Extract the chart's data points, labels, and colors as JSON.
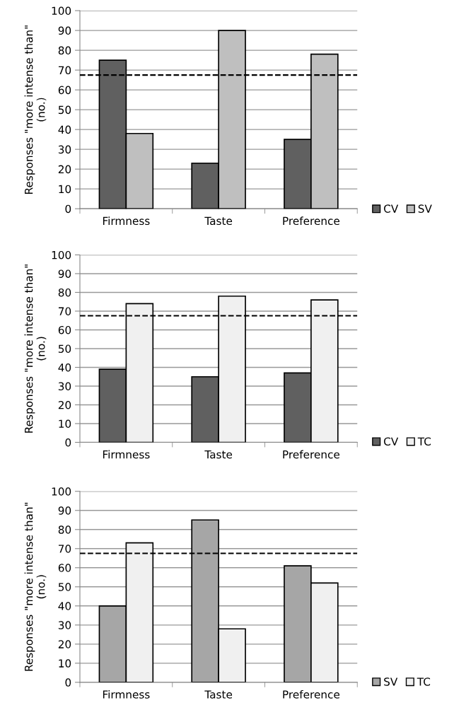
{
  "chart_data": [
    {
      "type": "bar",
      "categories": [
        "Firmness",
        "Taste",
        "Preference"
      ],
      "ylabel": "Responses \"more intense than\"\n(no.)",
      "ylim": [
        0,
        100
      ],
      "yticks": [
        0,
        10,
        20,
        30,
        40,
        50,
        60,
        70,
        80,
        90,
        100
      ],
      "grid": "y",
      "legend": "right",
      "series": [
        {
          "name": "CV",
          "color": "#606060",
          "values": [
            75,
            23,
            35
          ]
        },
        {
          "name": "SV",
          "color": "#bfbfbf",
          "values": [
            38,
            90,
            78
          ]
        }
      ],
      "ref_lines": [
        {
          "axis": "y",
          "value": 67.5,
          "color": "#000000",
          "line_style": "dashed"
        }
      ]
    },
    {
      "type": "bar",
      "categories": [
        "Firmness",
        "Taste",
        "Preference"
      ],
      "ylabel": "Responses \"more intense than\"\n(no.)",
      "ylim": [
        0,
        100
      ],
      "yticks": [
        0,
        10,
        20,
        30,
        40,
        50,
        60,
        70,
        80,
        90,
        100
      ],
      "grid": "y",
      "legend": "right",
      "series": [
        {
          "name": "CV",
          "color": "#606060",
          "values": [
            39,
            35,
            37
          ]
        },
        {
          "name": "TC",
          "color": "#f0f0f0",
          "values": [
            74,
            78,
            76
          ]
        }
      ],
      "ref_lines": [
        {
          "axis": "y",
          "value": 67.5,
          "color": "#000000",
          "line_style": "dashed"
        }
      ]
    },
    {
      "type": "bar",
      "categories": [
        "Firmness",
        "Taste",
        "Preference"
      ],
      "ylabel": "Responses \"more intense than\"\n(no.)",
      "ylim": [
        0,
        100
      ],
      "yticks": [
        0,
        10,
        20,
        30,
        40,
        50,
        60,
        70,
        80,
        90,
        100
      ],
      "grid": "y",
      "legend": "right",
      "series": [
        {
          "name": "SV",
          "color": "#a6a6a6",
          "values": [
            40,
            85,
            61
          ]
        },
        {
          "name": "TC",
          "color": "#f0f0f0",
          "values": [
            73,
            28,
            52
          ]
        }
      ],
      "ref_lines": [
        {
          "axis": "y",
          "value": 67.5,
          "color": "#000000",
          "line_style": "dashed"
        }
      ]
    }
  ]
}
